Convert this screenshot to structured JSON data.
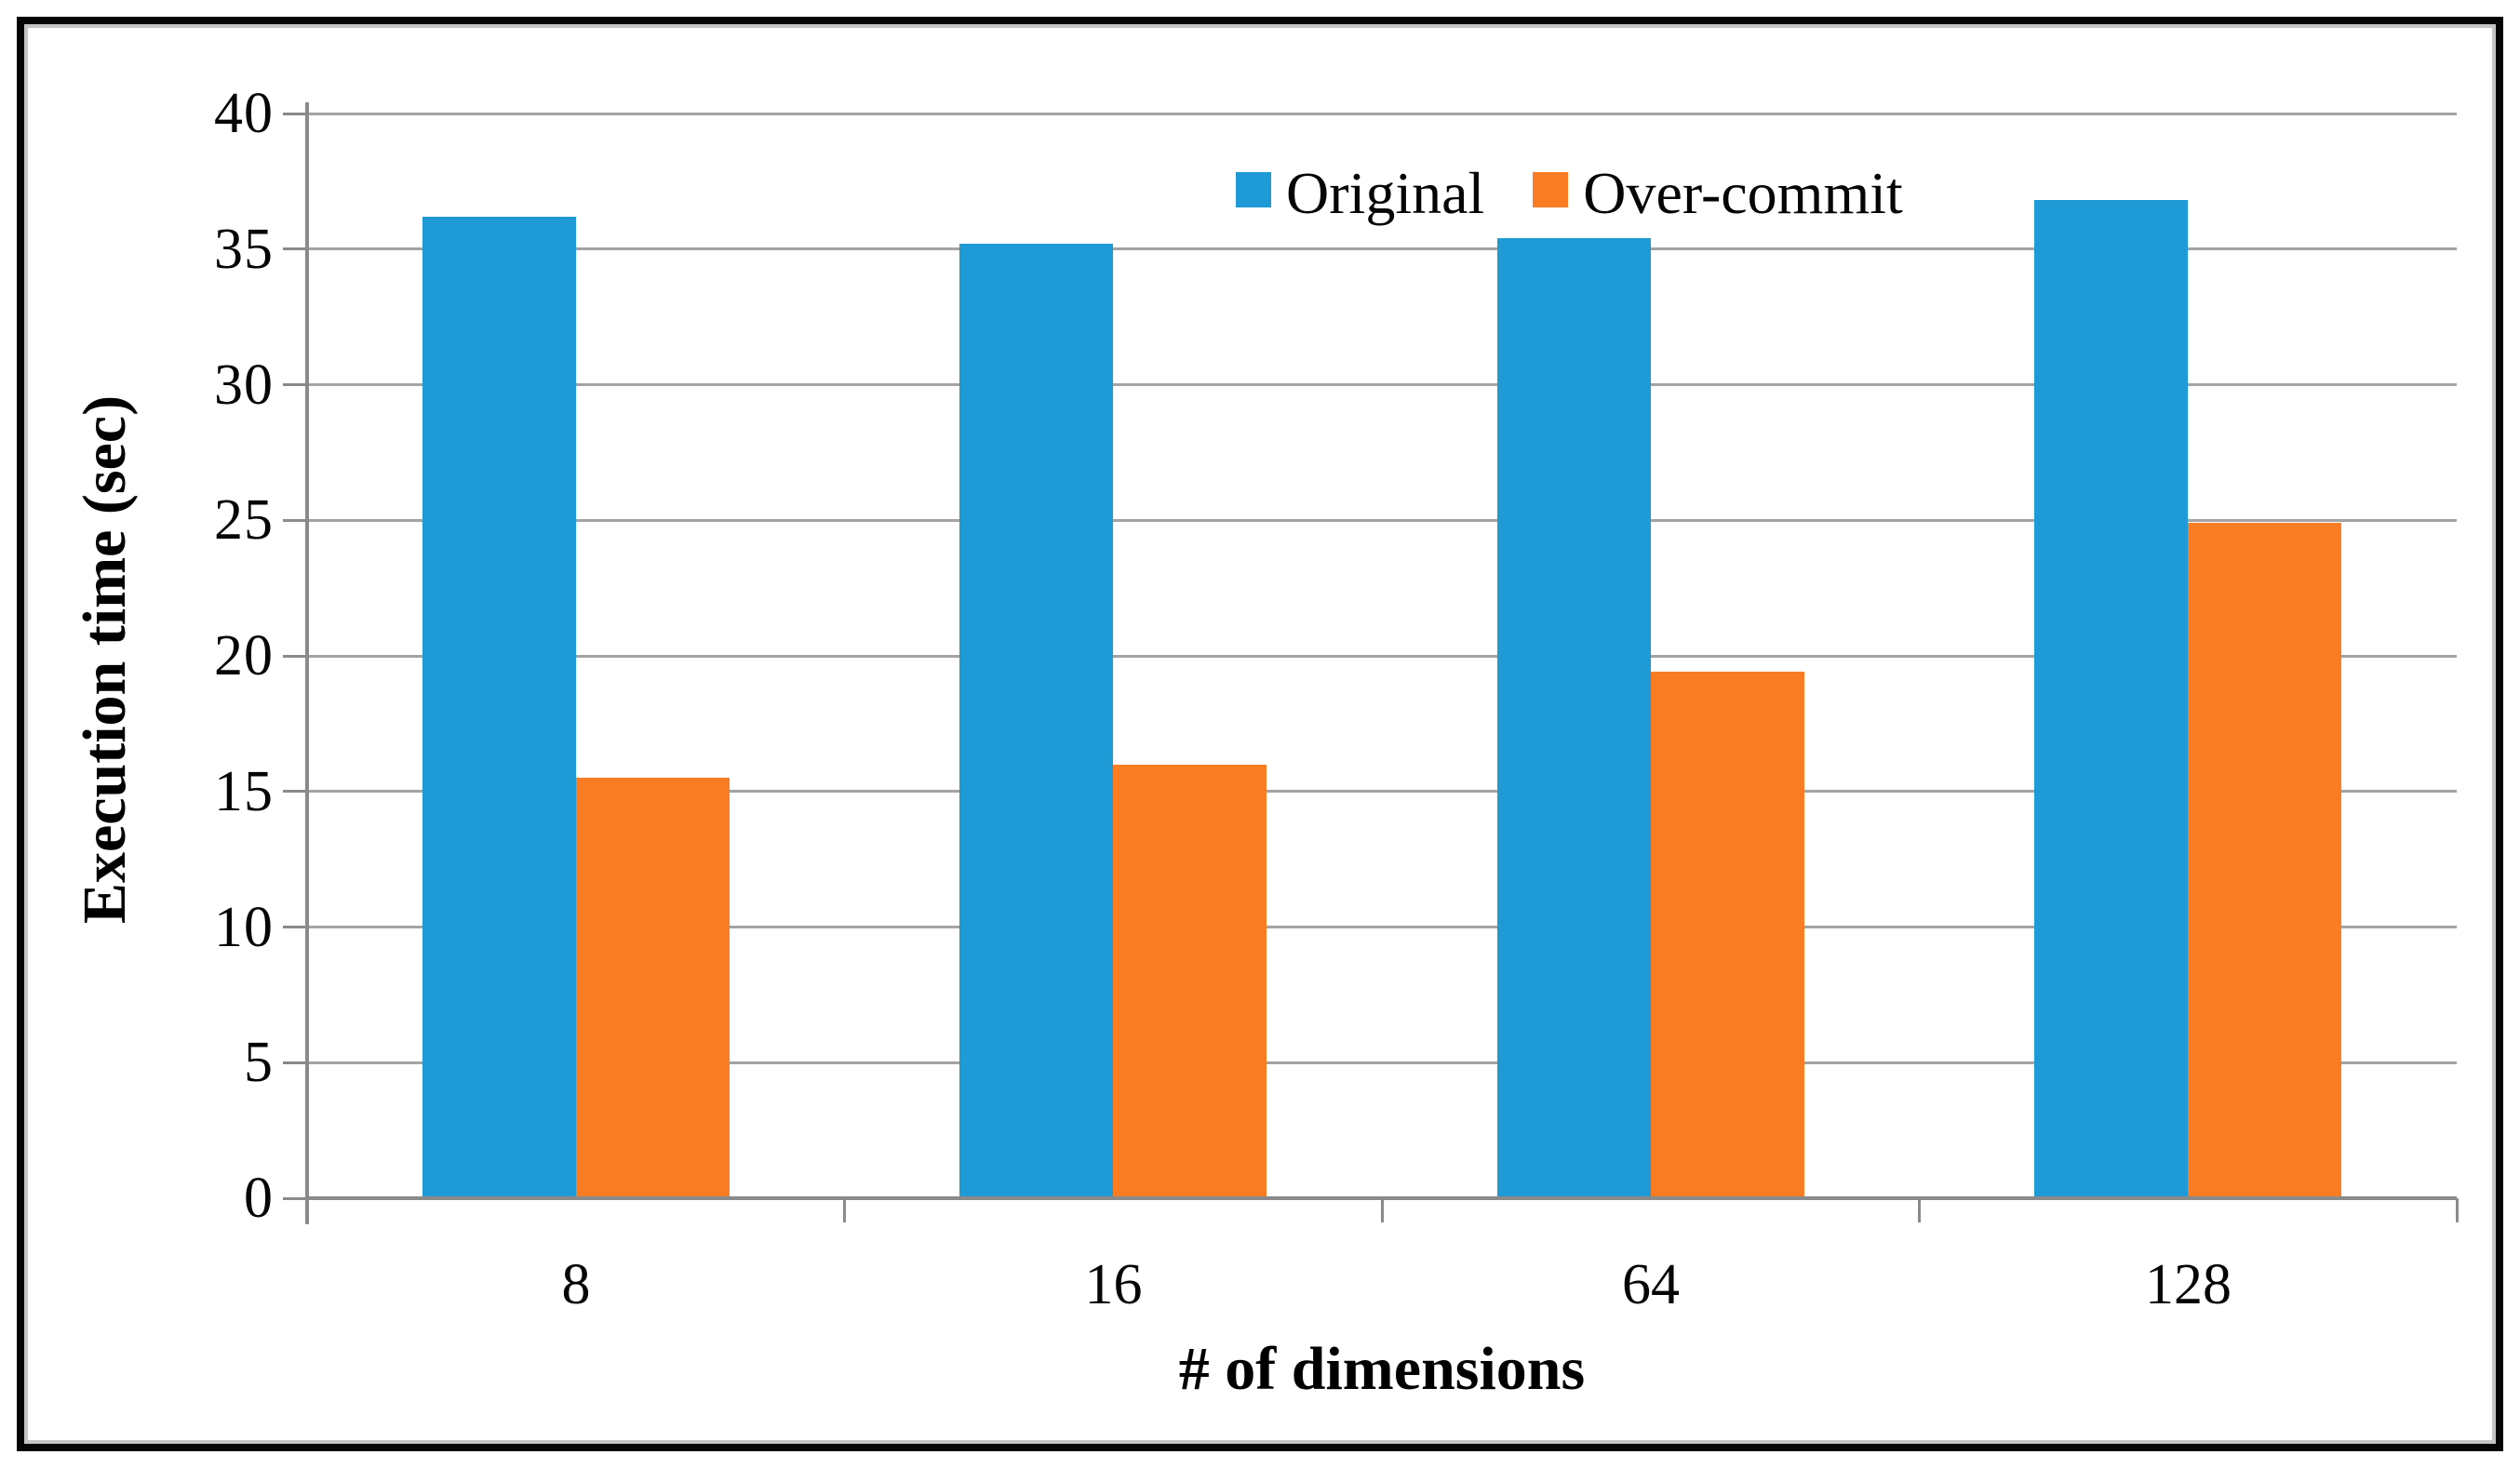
{
  "chart_data": {
    "type": "bar",
    "categories": [
      "8",
      "16",
      "64",
      "128"
    ],
    "series": [
      {
        "name": "Original",
        "color": "#1e9ad6",
        "values": [
          36.2,
          35.2,
          35.4,
          36.8
        ]
      },
      {
        "name": "Over-commit",
        "color": "#fb7d23",
        "values": [
          15.5,
          16.0,
          19.4,
          24.9
        ]
      }
    ],
    "xlabel": "# of dimensions",
    "ylabel": "Execution time (sec)",
    "ylim": [
      0,
      40
    ],
    "yticks": [
      0,
      5,
      10,
      15,
      20,
      25,
      30,
      35,
      40
    ],
    "grid": "horizontal",
    "legend_position": "top-center-inside",
    "gridline_color": "#a3a3a3",
    "axis_color": "#8a8a8a"
  }
}
